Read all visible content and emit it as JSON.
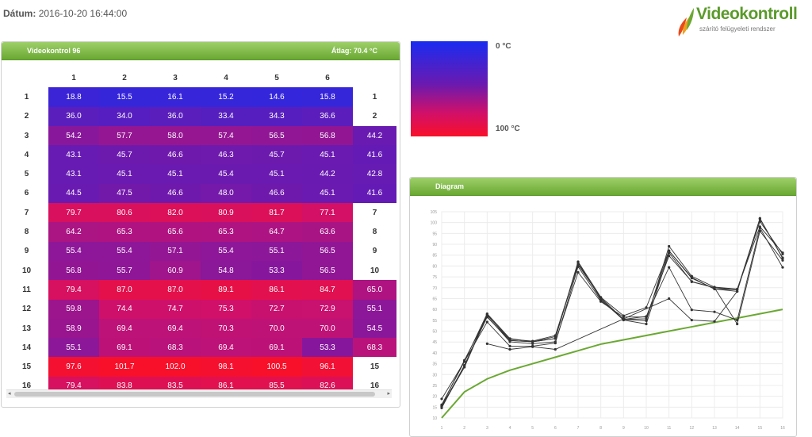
{
  "header": {
    "datum_label": "Dátum:",
    "datum_value": "2016-10-20 16:44:00"
  },
  "logo": {
    "name": "Videokontroll",
    "subtitle": "szárító felügyeleti rendszer"
  },
  "grid_panel": {
    "title": "Videokontrol 96",
    "average": "Átlag: 70.4 °C",
    "columns": [
      "1",
      "2",
      "3",
      "4",
      "5",
      "6"
    ],
    "rows": [
      {
        "label": "1",
        "values": [
          "18.8",
          "15.5",
          "16.1",
          "15.2",
          "14.6",
          "15.8"
        ],
        "extra": "1"
      },
      {
        "label": "2",
        "values": [
          "36.0",
          "34.0",
          "36.0",
          "33.4",
          "34.3",
          "36.6"
        ],
        "extra": "2"
      },
      {
        "label": "3",
        "values": [
          "54.2",
          "57.7",
          "58.0",
          "57.4",
          "56.5",
          "56.8"
        ],
        "extra": "44.2"
      },
      {
        "label": "4",
        "values": [
          "43.1",
          "45.7",
          "46.6",
          "46.3",
          "45.7",
          "45.1"
        ],
        "extra": "41.6"
      },
      {
        "label": "5",
        "values": [
          "43.1",
          "45.1",
          "45.1",
          "45.4",
          "45.1",
          "44.2"
        ],
        "extra": "42.8"
      },
      {
        "label": "6",
        "values": [
          "44.5",
          "47.5",
          "46.6",
          "48.0",
          "46.6",
          "45.1"
        ],
        "extra": "41.6"
      },
      {
        "label": "7",
        "values": [
          "79.7",
          "80.6",
          "82.0",
          "80.9",
          "81.7",
          "77.1"
        ],
        "extra": "7"
      },
      {
        "label": "8",
        "values": [
          "64.2",
          "65.3",
          "65.6",
          "65.3",
          "64.7",
          "63.6"
        ],
        "extra": "8"
      },
      {
        "label": "9",
        "values": [
          "55.4",
          "55.4",
          "57.1",
          "55.4",
          "55.1",
          "56.5"
        ],
        "extra": "9"
      },
      {
        "label": "10",
        "values": [
          "56.8",
          "55.7",
          "60.9",
          "54.8",
          "53.3",
          "56.5"
        ],
        "extra": "10"
      },
      {
        "label": "11",
        "values": [
          "79.4",
          "87.0",
          "87.0",
          "89.1",
          "86.1",
          "84.7"
        ],
        "extra": "65.0"
      },
      {
        "label": "12",
        "values": [
          "59.8",
          "74.4",
          "74.7",
          "75.3",
          "72.7",
          "72.9"
        ],
        "extra": "55.1"
      },
      {
        "label": "13",
        "values": [
          "58.9",
          "69.4",
          "69.4",
          "70.3",
          "70.0",
          "70.0"
        ],
        "extra": "54.5"
      },
      {
        "label": "14",
        "values": [
          "55.1",
          "69.1",
          "68.3",
          "69.4",
          "69.1",
          "53.3"
        ],
        "extra": "68.3"
      },
      {
        "label": "15",
        "values": [
          "97.6",
          "101.7",
          "102.0",
          "98.1",
          "100.5",
          "96.1"
        ],
        "extra": "15"
      },
      {
        "label": "16",
        "values": [
          "79.4",
          "83.8",
          "83.5",
          "86.1",
          "85.5",
          "82.6"
        ],
        "extra": "16"
      }
    ]
  },
  "legend": {
    "min_label": "0 °C",
    "max_label": "100 °C",
    "min_color": "#1a2cf0",
    "max_color": "#f8102a"
  },
  "diagram_panel": {
    "title": "Diagram"
  },
  "chart_data": {
    "type": "line",
    "x": [
      1,
      2,
      3,
      4,
      5,
      6,
      7,
      8,
      9,
      10,
      11,
      12,
      13,
      14,
      15,
      16
    ],
    "ylim": [
      10,
      105
    ],
    "y_ticks": [
      "10",
      "15",
      "20",
      "25",
      "30",
      "35",
      "40",
      "45",
      "50",
      "55",
      "60",
      "65",
      "70",
      "75",
      "80",
      "85",
      "90",
      "95",
      "100",
      "105"
    ],
    "x_ticks": [
      "1",
      "2",
      "3",
      "4",
      "5",
      "6",
      "7",
      "8",
      "9",
      "10",
      "11",
      "12",
      "13",
      "14",
      "15",
      "16"
    ],
    "grid": true,
    "series_color": "#333333",
    "trend_color": "#6aa832",
    "series": [
      {
        "values": [
          18.8,
          36.0,
          54.2,
          43.1,
          43.1,
          44.5,
          79.7,
          64.2,
          55.4,
          56.8,
          79.4,
          59.8,
          58.9,
          55.1,
          97.6,
          79.4
        ]
      },
      {
        "values": [
          15.5,
          34.0,
          57.7,
          45.7,
          45.1,
          47.5,
          80.6,
          65.3,
          55.4,
          55.7,
          87.0,
          74.4,
          69.4,
          69.1,
          101.7,
          83.8
        ]
      },
      {
        "values": [
          16.1,
          36.0,
          58.0,
          46.6,
          45.1,
          46.6,
          82.0,
          65.6,
          57.1,
          60.9,
          87.0,
          74.7,
          69.4,
          68.3,
          102.0,
          83.5
        ]
      },
      {
        "values": [
          15.2,
          33.4,
          57.4,
          46.3,
          45.4,
          48.0,
          80.9,
          65.3,
          55.4,
          54.8,
          89.1,
          75.3,
          70.3,
          69.4,
          98.1,
          86.1
        ]
      },
      {
        "values": [
          14.6,
          34.3,
          56.5,
          45.7,
          45.1,
          46.6,
          81.7,
          64.7,
          55.1,
          53.3,
          86.1,
          72.7,
          70.0,
          69.1,
          100.5,
          85.5
        ]
      },
      {
        "values": [
          15.8,
          36.6,
          56.8,
          45.1,
          44.2,
          45.1,
          77.1,
          63.6,
          56.5,
          56.5,
          84.7,
          72.9,
          70.0,
          53.3,
          96.1,
          82.6
        ]
      },
      {
        "values": [
          null,
          null,
          44.2,
          41.6,
          42.8,
          41.6,
          null,
          null,
          null,
          null,
          65.0,
          55.1,
          54.5,
          68.3,
          null,
          null
        ]
      }
    ],
    "trend": [
      10,
      22,
      28,
      32,
      35,
      38,
      41,
      44,
      46,
      48,
      50,
      52,
      54,
      56,
      58,
      60
    ]
  }
}
